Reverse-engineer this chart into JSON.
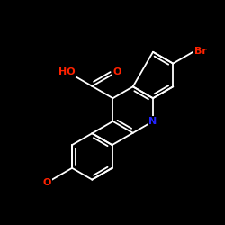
{
  "background": "#000000",
  "bond_color": "#ffffff",
  "atom_colors": {
    "N": "#2222ff",
    "O": "#ff2200",
    "Br": "#ff2200",
    "C": "#ffffff"
  },
  "bond_width": 1.3,
  "figsize": [
    2.5,
    2.5
  ],
  "dpi": 100
}
